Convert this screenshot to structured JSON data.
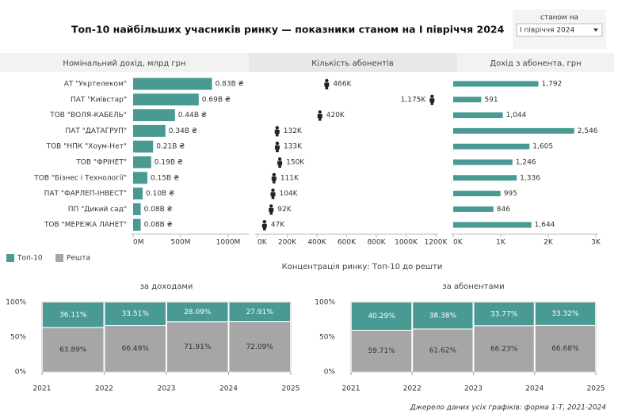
{
  "title": "Топ-10 найбільших учасників ринку — показники станом на І півріччя 2024",
  "filter": {
    "label": "станом на",
    "value": "І півріччя 2024"
  },
  "concentration_title": "Концентрація ринку: Топ-10 до решти",
  "source": "Джерело даних усіх графіків: форма 1-Т, 2021-2024",
  "chart_data": [
    {
      "type": "hbar",
      "header": "Номінальний дохід, млрд грн",
      "color": "#4a9a94",
      "categories": [
        "АТ \"Укртелеком\"",
        "ПАТ \"Київстар\"",
        "ТОВ \"ВОЛЯ-КАБЕЛЬ\"",
        "ПАТ \"ДАТАГРУП\"",
        "ТОВ \"НПК \"Хоум-Нет\"",
        "ТОВ \"ФРІНЕТ\"",
        "ТОВ \"Бізнес і Технології\"",
        "ПАТ \"ФАРЛЕП-ІНВЕСТ\"",
        "ПП \"Дикий сад\"",
        "ТОВ \"МЕРЕЖА ЛАНЕТ\""
      ],
      "values": [
        830,
        690,
        440,
        340,
        210,
        190,
        150,
        100,
        80,
        80
      ],
      "value_labels": [
        "0.83B ₴",
        "0.69B ₴",
        "0.44B ₴",
        "0.34B ₴",
        "0.21B ₴",
        "0.19B ₴",
        "0.15B ₴",
        "0.10B ₴",
        "0.08B ₴",
        "0.08B ₴"
      ],
      "xlim": [
        0,
        1200
      ],
      "xticks": [
        {
          "value": 0,
          "label": "0M"
        },
        {
          "value": 500,
          "label": "500M"
        },
        {
          "value": 1000,
          "label": "1000M"
        }
      ]
    },
    {
      "type": "icon",
      "header": "Кількість абонентів",
      "color": "#222222",
      "values": [
        466,
        1175,
        420,
        132,
        133,
        150,
        111,
        104,
        92,
        47
      ],
      "value_labels": [
        "466K",
        "1,175K",
        "420K",
        "132K",
        "133K",
        "150K",
        "111K",
        "104K",
        "92K",
        "47K"
      ],
      "xlim": [
        0,
        1200
      ],
      "xticks": [
        {
          "value": 0,
          "label": "0K"
        },
        {
          "value": 200,
          "label": "200K"
        },
        {
          "value": 400,
          "label": "400K"
        },
        {
          "value": 600,
          "label": "600K"
        },
        {
          "value": 800,
          "label": "800K"
        },
        {
          "value": 1000,
          "label": "1000K"
        },
        {
          "value": 1200,
          "label": "1200K"
        }
      ]
    },
    {
      "type": "hbar",
      "header": "Дохід з абонента, грн",
      "color": "#4a9a94",
      "values": [
        1792,
        591,
        1044,
        2546,
        1605,
        1246,
        1336,
        995,
        846,
        1644
      ],
      "value_labels": [
        "1,792",
        "591",
        "1,044",
        "2,546",
        "1,605",
        "1,246",
        "1,336",
        "995",
        "846",
        "1,644"
      ],
      "xlim": [
        0,
        3000
      ],
      "xticks": [
        {
          "value": 0,
          "label": "0K"
        },
        {
          "value": 1000,
          "label": "1K"
        },
        {
          "value": 2000,
          "label": "2K"
        },
        {
          "value": 3000,
          "label": "3K"
        }
      ]
    },
    {
      "type": "stacked_bar",
      "title": "за доходами",
      "x": [
        2021,
        2022,
        2023,
        2024
      ],
      "xlim": [
        2021,
        2025
      ],
      "xticks": [
        2021,
        2022,
        2023,
        2024,
        2025
      ],
      "ylim": [
        0,
        100
      ],
      "yticks": [
        {
          "value": 0,
          "label": "0%"
        },
        {
          "value": 50,
          "label": "50%"
        },
        {
          "value": 100,
          "label": "100%"
        }
      ],
      "grid": true,
      "series": [
        {
          "name": "Решта",
          "color": "#a6a6a6",
          "values": [
            63.89,
            66.49,
            71.91,
            72.09
          ],
          "value_labels": [
            "63.89%",
            "66.49%",
            "71.91%",
            "72.09%"
          ]
        },
        {
          "name": "Топ-10",
          "color": "#4a9a94",
          "values": [
            36.11,
            33.51,
            28.09,
            27.91
          ],
          "value_labels": [
            "36.11%",
            "33.51%",
            "28.09%",
            "27.91%"
          ]
        }
      ]
    },
    {
      "type": "stacked_bar",
      "title": "за абонентами",
      "x": [
        2021,
        2022,
        2023,
        2024
      ],
      "xlim": [
        2021,
        2025
      ],
      "xticks": [
        2021,
        2022,
        2023,
        2024,
        2025
      ],
      "ylim": [
        0,
        100
      ],
      "yticks": [
        {
          "value": 0,
          "label": "0%"
        },
        {
          "value": 50,
          "label": "50%"
        },
        {
          "value": 100,
          "label": "100%"
        }
      ],
      "grid": true,
      "series": [
        {
          "name": "Решта",
          "color": "#a6a6a6",
          "values": [
            59.71,
            61.62,
            66.23,
            66.68
          ],
          "value_labels": [
            "59.71%",
            "61.62%",
            "66.23%",
            "66.68%"
          ]
        },
        {
          "name": "Топ-10",
          "color": "#4a9a94",
          "values": [
            40.29,
            38.38,
            33.77,
            33.32
          ],
          "value_labels": [
            "40.29%",
            "38.38%",
            "33.77%",
            "33.32%"
          ]
        }
      ]
    }
  ]
}
